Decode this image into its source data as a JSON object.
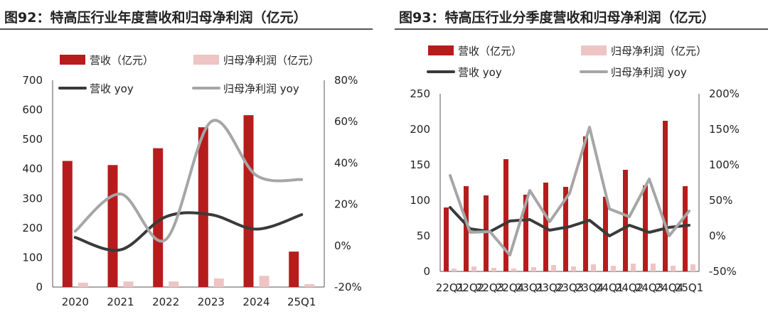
{
  "charts": [
    {
      "title": "图92：特高压行业年度营收和归母净利润（亿元）",
      "chart_data": {
        "type": "bar",
        "categories": [
          "2020",
          "2021",
          "2022",
          "2023",
          "2024",
          "25Q1"
        ],
        "series": [
          {
            "name": "营收（亿元）",
            "kind": "bar",
            "axis": "left",
            "color": "#b71c1c",
            "values": [
              427,
              413,
              470,
              541,
              582,
              120
            ]
          },
          {
            "name": "归母净利润（亿元）",
            "kind": "bar",
            "axis": "left",
            "color": "#efc4c4",
            "values": [
              15,
              19,
              19,
              29,
              38,
              10
            ]
          },
          {
            "name": "营收 yoy",
            "kind": "line",
            "axis": "right",
            "color": "#3a3a3a",
            "values": [
              0.04,
              -0.02,
              0.14,
              0.15,
              0.08,
              0.15
            ]
          },
          {
            "name": "归母净利润 yoy",
            "kind": "line",
            "axis": "right",
            "color": "#a6a6a6",
            "values": [
              0.07,
              0.25,
              0.03,
              0.6,
              0.34,
              0.32
            ]
          }
        ],
        "ylim": [
          0,
          700
        ],
        "yticks": [
          0,
          100,
          200,
          300,
          400,
          500,
          600,
          700
        ],
        "y2lim": [
          -0.2,
          0.8
        ],
        "y2ticks": [
          "-20%",
          "0%",
          "20%",
          "40%",
          "60%",
          "80%"
        ],
        "smooth": true,
        "legend": "top"
      }
    },
    {
      "title": "图93：特高压行业分季度营收和归母净利润（亿元）",
      "chart_data": {
        "type": "bar",
        "categories": [
          "22Q1",
          "22Q2",
          "22Q3",
          "22Q4",
          "23Q1",
          "23Q2",
          "23Q3",
          "23Q4",
          "24Q1",
          "24Q2",
          "24Q3",
          "24Q4",
          "25Q1"
        ],
        "series": [
          {
            "name": "营收（亿元）",
            "kind": "bar",
            "axis": "left",
            "color": "#b71c1c",
            "values": [
              90,
              120,
              107,
              158,
              108,
              125,
              119,
              190,
              105,
              143,
              121,
              212,
              120
            ]
          },
          {
            "name": "归母净利润（亿元）",
            "kind": "bar",
            "axis": "left",
            "color": "#efc4c4",
            "values": [
              4,
              7,
              5,
              4,
              6,
              9,
              7,
              10,
              8,
              11,
              11,
              8,
              10
            ]
          },
          {
            "name": "营收 yoy",
            "kind": "line",
            "axis": "right",
            "color": "#3a3a3a",
            "values": [
              0.4,
              0.1,
              0.06,
              0.21,
              0.23,
              0.08,
              0.13,
              0.22,
              0.0,
              0.15,
              0.05,
              0.12,
              0.15
            ]
          },
          {
            "name": "归母净利润 yoy",
            "kind": "line",
            "axis": "right",
            "color": "#a6a6a6",
            "values": [
              0.85,
              0.05,
              0.06,
              -0.27,
              0.64,
              0.2,
              0.6,
              1.53,
              0.38,
              0.27,
              0.8,
              0.0,
              0.35
            ]
          }
        ],
        "ylim": [
          0,
          250
        ],
        "yticks": [
          0,
          50,
          100,
          150,
          200,
          250
        ],
        "y2lim": [
          -0.5,
          2.0
        ],
        "y2ticks": [
          "-50%",
          "0%",
          "50%",
          "100%",
          "150%",
          "200%"
        ],
        "smooth": false,
        "legend": "top"
      }
    }
  ]
}
